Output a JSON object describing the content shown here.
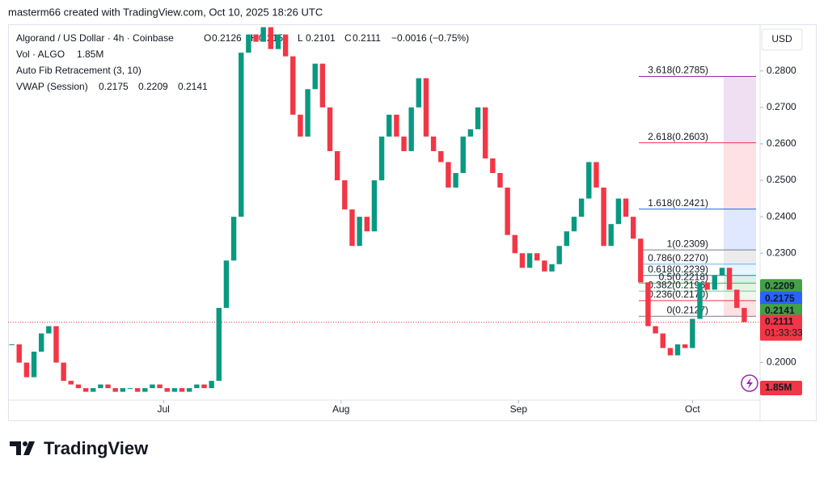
{
  "header": {
    "caption": "masterm66 created with TradingView.com, Oct 10, 2025 18:26 UTC"
  },
  "chart_data": {
    "type": "candlestick",
    "legend": {
      "symbol": "Algorand / US Dollar · 4h · Coinbase",
      "ohlc": [
        {
          "key": "O",
          "value": 0.2126
        },
        {
          "key": "H",
          "value": 0.215
        },
        {
          "key": "L",
          "value": 0.2101
        },
        {
          "key": "C",
          "value": 0.2111
        }
      ],
      "change": "−0.0016 (−0.75%)",
      "volume_name": "Vol · ALGO",
      "volume_value": "1.85M",
      "fib_name": "Auto Fib Retracement (3, 10)",
      "vwap_name": "VWAP (Session)",
      "vwap_values": [
        0.2175,
        0.2209,
        0.2141
      ]
    },
    "close": [
      0.205,
      0.2,
      0.196,
      0.203,
      0.208,
      0.21,
      0.2,
      0.195,
      0.194,
      0.193,
      0.192,
      0.193,
      0.194,
      0.193,
      0.192,
      0.193,
      0.193,
      0.192,
      0.193,
      0.194,
      0.193,
      0.192,
      0.193,
      0.192,
      0.193,
      0.194,
      0.193,
      0.195,
      0.215,
      0.228,
      0.24,
      0.285,
      0.29,
      0.288,
      0.292,
      0.286,
      0.29,
      0.284,
      0.268,
      0.262,
      0.275,
      0.282,
      0.27,
      0.258,
      0.25,
      0.242,
      0.232,
      0.24,
      0.236,
      0.25,
      0.262,
      0.268,
      0.262,
      0.258,
      0.27,
      0.278,
      0.262,
      0.258,
      0.255,
      0.248,
      0.252,
      0.262,
      0.264,
      0.27,
      0.256,
      0.252,
      0.248,
      0.235,
      0.23,
      0.226,
      0.23,
      0.228,
      0.225,
      0.227,
      0.232,
      0.236,
      0.24,
      0.245,
      0.255,
      0.248,
      0.232,
      0.238,
      0.245,
      0.24,
      0.234,
      0.222,
      0.21,
      0.208,
      0.204,
      0.202,
      0.205,
      0.204,
      0.212,
      0.222,
      0.22,
      0.224,
      0.226,
      0.22,
      0.215,
      0.2111
    ],
    "up_color": "#089981",
    "down_color": "#f23645",
    "xlim": [
      0,
      100
    ],
    "xticks": [
      {
        "value": 21,
        "label": "Jul"
      },
      {
        "value": 45,
        "label": "Aug"
      },
      {
        "value": 69,
        "label": "Sep"
      },
      {
        "value": 92.5,
        "label": "Oct"
      }
    ],
    "ylim": [
      0.1897,
      0.2928
    ],
    "yticks": [
      {
        "value": 0.28,
        "label": "0.2800"
      },
      {
        "value": 0.27,
        "label": "0.2700"
      },
      {
        "value": 0.26,
        "label": "0.2600"
      },
      {
        "value": 0.25,
        "label": "0.2500"
      },
      {
        "value": 0.24,
        "label": "0.2400"
      },
      {
        "value": 0.23,
        "label": "0.2300"
      },
      {
        "value": 0.2,
        "label": "0.2000"
      }
    ],
    "currency": "USD",
    "fib": [
      {
        "label": "3.618(0.2785)",
        "value": 0.2785,
        "color": "#9c27b0"
      },
      {
        "label": "2.618(0.2603)",
        "value": 0.2603,
        "color": "#f23645"
      },
      {
        "label": "1.618(0.2421)",
        "value": 0.2421,
        "color": "#2962ff"
      },
      {
        "label": "1(0.2309)",
        "value": 0.2309,
        "color": "#787b86"
      },
      {
        "label": "0.786(0.2270)",
        "value": 0.227,
        "color": "#64b5f6"
      },
      {
        "label": "0.618(0.2239)",
        "value": 0.2239,
        "color": "#089981"
      },
      {
        "label": "0.5(0.2218)",
        "value": 0.2218,
        "color": "#4caf50"
      },
      {
        "label": "0.382(0.2196)",
        "value": 0.2196,
        "color": "#81c784"
      },
      {
        "label": "0.236(0.2170)",
        "value": 0.217,
        "color": "#f23645"
      },
      {
        "label": "0(0.2127)",
        "value": 0.2127,
        "color": "#787b86"
      }
    ],
    "badges": [
      {
        "value": 0.2209,
        "color": "#43a047"
      },
      {
        "value": 0.2175,
        "color": "#2962ff"
      },
      {
        "value": 0.2141,
        "color": "#43a047"
      },
      {
        "value": 0.2111,
        "color": "#f23645",
        "timer": "01:33:33"
      }
    ],
    "volume_badge": "1.85M"
  },
  "footer": {
    "brand": "TradingView"
  }
}
